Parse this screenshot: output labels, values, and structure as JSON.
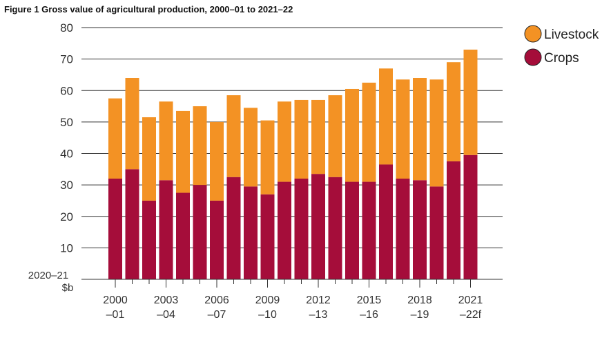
{
  "title": "Figure 1 Gross value of agricultural production, 2000–01 to 2021–22",
  "chart_data": {
    "type": "bar",
    "stacked": true,
    "title": "Figure 1 Gross value of agricultural production, 2000–01 to 2021–22",
    "ylabel_line1": "2020–21",
    "ylabel_line2": "$b",
    "ylim": [
      0,
      80
    ],
    "yticks": [
      10,
      20,
      30,
      40,
      50,
      60,
      70,
      80
    ],
    "grid": true,
    "legend_position": "top-right",
    "x_tick_labels": [
      {
        "line1": "2000",
        "line2": "–01",
        "index": 0
      },
      {
        "line1": "2003",
        "line2": "–04",
        "index": 3
      },
      {
        "line1": "2006",
        "line2": "–07",
        "index": 6
      },
      {
        "line1": "2009",
        "line2": "–10",
        "index": 9
      },
      {
        "line1": "2012",
        "line2": "–13",
        "index": 12
      },
      {
        "line1": "2015",
        "line2": "–16",
        "index": 15
      },
      {
        "line1": "2018",
        "line2": "–19",
        "index": 18
      },
      {
        "line1": "2021",
        "line2": "–22f",
        "index": 21
      }
    ],
    "categories": [
      "2000–01",
      "2001–02",
      "2002–03",
      "2003–04",
      "2004–05",
      "2005–06",
      "2006–07",
      "2007–08",
      "2008–09",
      "2009–10",
      "2010–11",
      "2011–12",
      "2012–13",
      "2013–14",
      "2014–15",
      "2015–16",
      "2016–17",
      "2017–18",
      "2018–19",
      "2019–20",
      "2020–21",
      "2021–22f"
    ],
    "series": [
      {
        "name": "Crops",
        "color": "#a50d3a",
        "values": [
          32,
          35,
          25,
          31.5,
          27.5,
          30,
          25,
          32.5,
          29.5,
          27,
          31,
          32,
          33.5,
          32.5,
          31,
          31,
          36.5,
          32,
          31.5,
          29.5,
          37.5,
          39.5
        ]
      },
      {
        "name": "Livestock",
        "color": "#f39224",
        "values": [
          25.5,
          29,
          26.5,
          25,
          26,
          25,
          25,
          26,
          25,
          23.5,
          25.5,
          25,
          23.5,
          26,
          29.5,
          31.5,
          30.5,
          31.5,
          32.5,
          34,
          31.5,
          33.5
        ]
      }
    ]
  }
}
